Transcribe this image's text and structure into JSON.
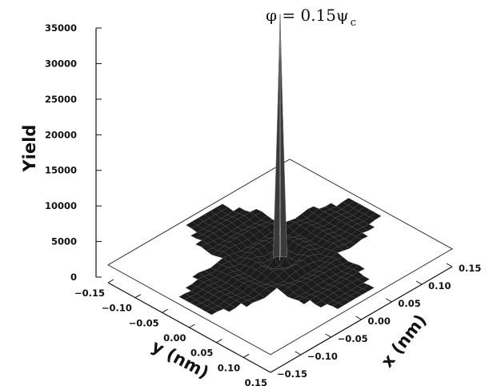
{
  "chart_data": {
    "type": "surface",
    "title": "φ = 0.15ψ",
    "title_subscript": "c",
    "zlabel": "Yield",
    "xlabel": "x (nm)",
    "ylabel": "y (nm)",
    "zlim": [
      0,
      35000
    ],
    "xlim": [
      -0.15,
      0.15
    ],
    "ylim": [
      -0.15,
      0.15
    ],
    "z_ticks": [
      "0",
      "5000",
      "10000",
      "15000",
      "20000",
      "25000",
      "30000",
      "35000"
    ],
    "x_ticks": [
      "−0.15",
      "−0.10",
      "−0.05",
      "0.00",
      "0.05",
      "0.10",
      "0.15"
    ],
    "y_ticks": [
      "−0.15",
      "−0.10",
      "−0.05",
      "0.00",
      "0.05",
      "0.10",
      "0.15"
    ],
    "peak": {
      "x": 0.0,
      "y": 0.0,
      "z": 35000
    },
    "baseline_level": 2500,
    "surface_color": "#1c1c1c",
    "grid": false,
    "legend": "none"
  }
}
